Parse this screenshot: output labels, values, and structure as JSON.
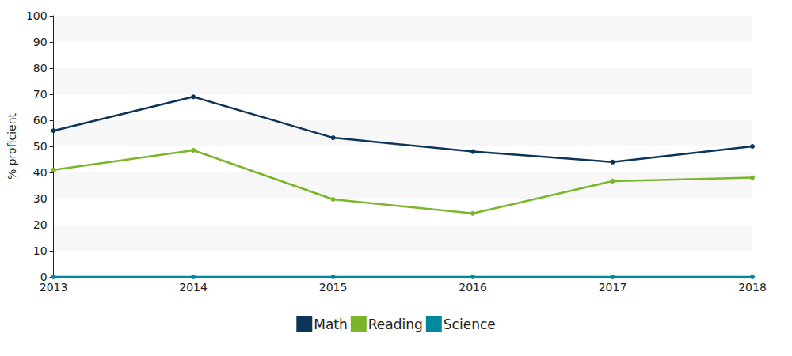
{
  "chart_data": {
    "type": "line",
    "y_label": "% proficient",
    "categories": [
      "2013",
      "2014",
      "2015",
      "2016",
      "2017",
      "2018"
    ],
    "series": [
      {
        "name": "Math",
        "color": "#0d3559",
        "values": [
          56,
          69,
          53.3,
          48,
          44,
          50
        ]
      },
      {
        "name": "Reading",
        "color": "#7ab52a",
        "values": [
          41,
          48.5,
          29.7,
          24.3,
          36.7,
          38
        ]
      },
      {
        "name": "Science",
        "color": "#00899e",
        "values": [
          0,
          0,
          0,
          0,
          0,
          0
        ]
      }
    ],
    "ylim": [
      0,
      100
    ],
    "yticks": [
      0,
      10,
      20,
      30,
      40,
      50,
      60,
      70,
      80,
      90,
      100
    ],
    "grid": true,
    "legend": "bottom",
    "marker": "circle"
  }
}
